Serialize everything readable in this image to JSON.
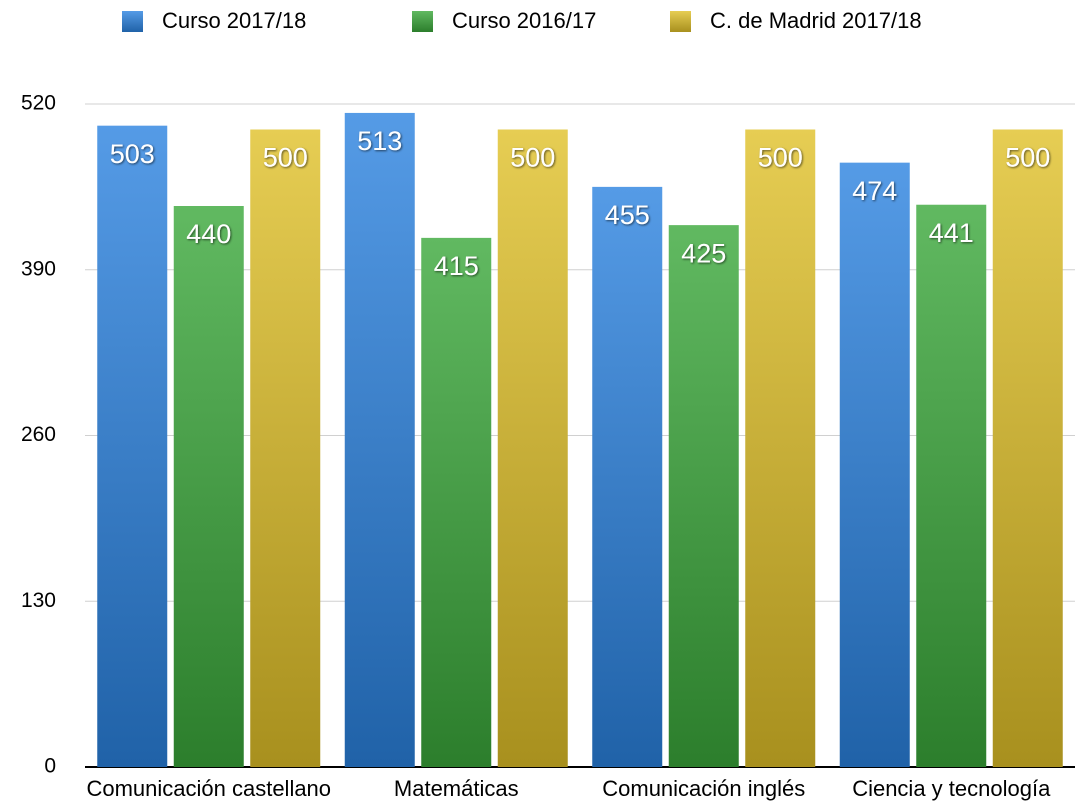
{
  "chart_data": {
    "type": "bar",
    "categories": [
      "Comunicación castellano",
      "Matemáticas",
      "Comunicación inglés",
      "Ciencia y tecnología"
    ],
    "series": [
      {
        "name": "Curso 2017/18",
        "color": "#2a82e0",
        "values": [
          503,
          513,
          455,
          474
        ]
      },
      {
        "name": "Curso 2016/17",
        "color": "#3aa83a",
        "values": [
          440,
          415,
          425,
          441
        ]
      },
      {
        "name": "C. de Madrid 2017/18",
        "color": "#e0c028",
        "values": [
          500,
          500,
          500,
          500
        ]
      }
    ],
    "ylim": [
      0,
      520
    ],
    "yticks": [
      0,
      130,
      260,
      390,
      520
    ],
    "grid": true,
    "legend": "top"
  }
}
